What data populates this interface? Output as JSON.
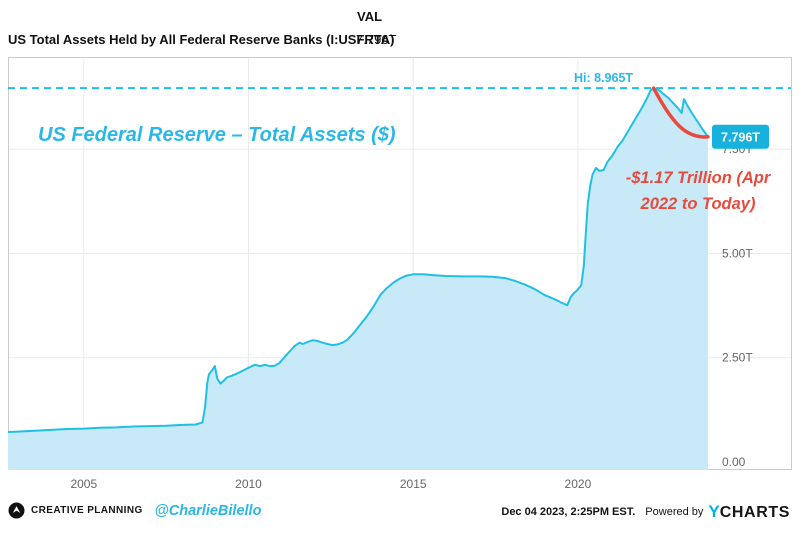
{
  "header": {
    "value_column_label": "VAL",
    "series_name": "US Total Assets Held by All Federal Reserve Banks (I:USFRTA)",
    "series_value": "7.796T"
  },
  "chart_data": {
    "type": "area",
    "title": "US Federal Reserve – Total Assets ($)",
    "xlabel": "",
    "ylabel": "",
    "grid": true,
    "x_domain": [
      2002.7,
      2026.5
    ],
    "y_domain": [
      0,
      9.71
    ],
    "x_ticks": [
      {
        "value": 2005,
        "label": "2005"
      },
      {
        "value": 2010,
        "label": "2010"
      },
      {
        "value": 2015,
        "label": "2015"
      },
      {
        "value": 2020,
        "label": "2020"
      }
    ],
    "y_ticks": [
      {
        "value": 0,
        "label": "0.00"
      },
      {
        "value": 2.5,
        "label": "2.50T"
      },
      {
        "value": 5,
        "label": "5.00T"
      },
      {
        "value": 7.5,
        "label": "7.50T"
      }
    ],
    "annotations": {
      "high_line": {
        "value": 8.965,
        "label": "Hi: 8.965T"
      },
      "current_badge": {
        "value": 7.796,
        "label": "7.796T"
      },
      "decline": {
        "lines": [
          "-$1.17 Trillion (Apr",
          "2022 to Today)"
        ],
        "from_x": 2022.3,
        "from_value": 8.965,
        "to_x": 2023.95,
        "to_value": 7.796
      }
    },
    "colors": {
      "line": "#1fbfe8",
      "fill": "#c8e9f7",
      "accent_text": "#2ab8e8",
      "red": "#e84b3c",
      "grid": "#ebebeb",
      "border": "#cccccc",
      "axis_text": "#666666",
      "badge_bg": "#17b1dd",
      "badge_text": "#ffffff"
    },
    "series": [
      {
        "name": "US Total Assets Held by All Federal Reserve Banks (I:USFRTA)",
        "units": "T",
        "points": [
          [
            2002.7,
            0.72
          ],
          [
            2003.0,
            0.73
          ],
          [
            2003.5,
            0.75
          ],
          [
            2004.0,
            0.77
          ],
          [
            2004.5,
            0.79
          ],
          [
            2005.0,
            0.8
          ],
          [
            2005.5,
            0.82
          ],
          [
            2006.0,
            0.83
          ],
          [
            2006.5,
            0.85
          ],
          [
            2007.0,
            0.86
          ],
          [
            2007.5,
            0.87
          ],
          [
            2008.0,
            0.89
          ],
          [
            2008.4,
            0.9
          ],
          [
            2008.6,
            0.95
          ],
          [
            2008.68,
            1.3
          ],
          [
            2008.75,
            1.9
          ],
          [
            2008.8,
            2.1
          ],
          [
            2008.9,
            2.2
          ],
          [
            2008.98,
            2.3
          ],
          [
            2009.05,
            2.0
          ],
          [
            2009.15,
            1.88
          ],
          [
            2009.25,
            1.95
          ],
          [
            2009.35,
            2.03
          ],
          [
            2009.5,
            2.07
          ],
          [
            2009.65,
            2.12
          ],
          [
            2009.8,
            2.18
          ],
          [
            2009.95,
            2.24
          ],
          [
            2010.1,
            2.3
          ],
          [
            2010.2,
            2.33
          ],
          [
            2010.35,
            2.3
          ],
          [
            2010.5,
            2.33
          ],
          [
            2010.65,
            2.3
          ],
          [
            2010.8,
            2.31
          ],
          [
            2010.95,
            2.38
          ],
          [
            2011.1,
            2.52
          ],
          [
            2011.25,
            2.65
          ],
          [
            2011.4,
            2.78
          ],
          [
            2011.55,
            2.86
          ],
          [
            2011.65,
            2.83
          ],
          [
            2011.8,
            2.88
          ],
          [
            2011.95,
            2.92
          ],
          [
            2012.1,
            2.9
          ],
          [
            2012.25,
            2.86
          ],
          [
            2012.4,
            2.83
          ],
          [
            2012.55,
            2.8
          ],
          [
            2012.7,
            2.82
          ],
          [
            2012.85,
            2.86
          ],
          [
            2013.0,
            2.93
          ],
          [
            2013.2,
            3.1
          ],
          [
            2013.4,
            3.3
          ],
          [
            2013.6,
            3.5
          ],
          [
            2013.8,
            3.73
          ],
          [
            2014.0,
            4.0
          ],
          [
            2014.2,
            4.17
          ],
          [
            2014.4,
            4.3
          ],
          [
            2014.6,
            4.4
          ],
          [
            2014.8,
            4.47
          ],
          [
            2015.0,
            4.5
          ],
          [
            2015.3,
            4.5
          ],
          [
            2015.6,
            4.48
          ],
          [
            2016.0,
            4.46
          ],
          [
            2016.5,
            4.45
          ],
          [
            2017.0,
            4.45
          ],
          [
            2017.4,
            4.44
          ],
          [
            2017.8,
            4.41
          ],
          [
            2018.1,
            4.34
          ],
          [
            2018.4,
            4.25
          ],
          [
            2018.7,
            4.14
          ],
          [
            2019.0,
            4.0
          ],
          [
            2019.3,
            3.9
          ],
          [
            2019.55,
            3.8
          ],
          [
            2019.68,
            3.76
          ],
          [
            2019.78,
            3.95
          ],
          [
            2019.88,
            4.05
          ],
          [
            2019.98,
            4.12
          ],
          [
            2020.1,
            4.24
          ],
          [
            2020.18,
            4.7
          ],
          [
            2020.25,
            5.6
          ],
          [
            2020.3,
            6.2
          ],
          [
            2020.38,
            6.65
          ],
          [
            2020.45,
            6.9
          ],
          [
            2020.55,
            7.05
          ],
          [
            2020.65,
            6.98
          ],
          [
            2020.78,
            7.0
          ],
          [
            2020.9,
            7.2
          ],
          [
            2021.05,
            7.35
          ],
          [
            2021.2,
            7.55
          ],
          [
            2021.35,
            7.7
          ],
          [
            2021.5,
            7.9
          ],
          [
            2021.65,
            8.1
          ],
          [
            2021.8,
            8.3
          ],
          [
            2021.95,
            8.5
          ],
          [
            2022.1,
            8.73
          ],
          [
            2022.2,
            8.9
          ],
          [
            2022.3,
            8.965
          ],
          [
            2022.45,
            8.92
          ],
          [
            2022.6,
            8.82
          ],
          [
            2022.75,
            8.73
          ],
          [
            2022.9,
            8.6
          ],
          [
            2023.05,
            8.47
          ],
          [
            2023.15,
            8.37
          ],
          [
            2023.22,
            8.7
          ],
          [
            2023.3,
            8.58
          ],
          [
            2023.45,
            8.38
          ],
          [
            2023.6,
            8.2
          ],
          [
            2023.75,
            8.02
          ],
          [
            2023.88,
            7.87
          ],
          [
            2023.95,
            7.796
          ]
        ]
      }
    ]
  },
  "footer": {
    "brand": "CREATIVE PLANNING",
    "handle": "@CharlieBilello",
    "timestamp": "Dec 04 2023, 2:25PM EST.",
    "powered_by": "Powered by",
    "ycharts_y": "Y",
    "ycharts_charts": "CHARTS"
  }
}
